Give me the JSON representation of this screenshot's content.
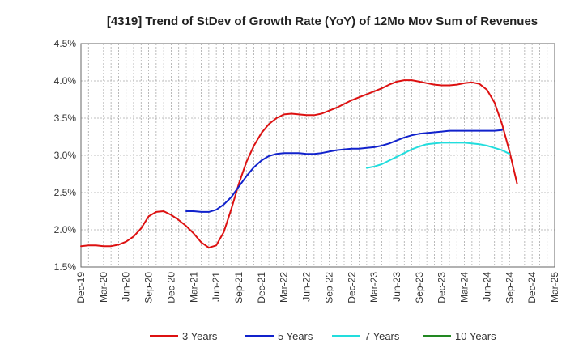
{
  "chart_data": {
    "type": "line",
    "title": "[4319]  Trend of StDev of Growth Rate (YoY) of 12Mo Mov Sum of Revenues",
    "xlabel": "",
    "ylabel": "",
    "ylim": [
      1.5,
      4.5
    ],
    "yticks": [
      "1.5%",
      "2.0%",
      "2.5%",
      "3.0%",
      "3.5%",
      "4.0%",
      "4.5%"
    ],
    "x_tick_labels": [
      "Dec-19",
      "Mar-20",
      "Jun-20",
      "Sep-20",
      "Dec-20",
      "Mar-21",
      "Jun-21",
      "Sep-21",
      "Dec-21",
      "Mar-22",
      "Jun-22",
      "Sep-22",
      "Dec-22",
      "Mar-23",
      "Jun-23",
      "Sep-23",
      "Dec-23",
      "Mar-24",
      "Jun-24",
      "Sep-24",
      "Dec-24",
      "Mar-25"
    ],
    "grid": true,
    "legend_position": "bottom",
    "series": [
      {
        "name": "3 Years",
        "color": "#dd1111",
        "start_index": 0,
        "values": [
          1.78,
          1.79,
          1.79,
          1.78,
          1.78,
          1.8,
          1.84,
          1.91,
          2.02,
          2.18,
          2.24,
          2.25,
          2.2,
          2.13,
          2.05,
          1.95,
          1.83,
          1.76,
          1.79,
          1.97,
          2.28,
          2.62,
          2.91,
          3.13,
          3.3,
          3.42,
          3.5,
          3.55,
          3.56,
          3.55,
          3.54,
          3.54,
          3.56,
          3.6,
          3.64,
          3.69,
          3.74,
          3.78,
          3.82,
          3.86,
          3.9,
          3.95,
          3.99,
          4.01,
          4.01,
          3.99,
          3.97,
          3.95,
          3.94,
          3.94,
          3.95,
          3.97,
          3.98,
          3.96,
          3.88,
          3.71,
          3.42,
          3.05,
          2.62
        ]
      },
      {
        "name": "5 Years",
        "color": "#1122cc",
        "start_index": 14,
        "values": [
          2.25,
          2.25,
          2.24,
          2.24,
          2.27,
          2.34,
          2.44,
          2.58,
          2.72,
          2.84,
          2.93,
          2.99,
          3.02,
          3.03,
          3.03,
          3.03,
          3.02,
          3.02,
          3.03,
          3.05,
          3.07,
          3.08,
          3.09,
          3.09,
          3.1,
          3.11,
          3.13,
          3.16,
          3.2,
          3.24,
          3.27,
          3.29,
          3.3,
          3.31,
          3.32,
          3.33,
          3.33,
          3.33,
          3.33,
          3.33,
          3.33,
          3.33,
          3.34
        ]
      },
      {
        "name": "7 Years",
        "color": "#22dddd",
        "start_index": 38,
        "values": [
          2.83,
          2.85,
          2.88,
          2.93,
          2.98,
          3.03,
          3.08,
          3.12,
          3.15,
          3.16,
          3.17,
          3.17,
          3.17,
          3.17,
          3.16,
          3.15,
          3.13,
          3.1,
          3.07,
          3.02
        ]
      },
      {
        "name": "10 Years",
        "color": "#228822",
        "start_index": 0,
        "values": []
      }
    ]
  }
}
